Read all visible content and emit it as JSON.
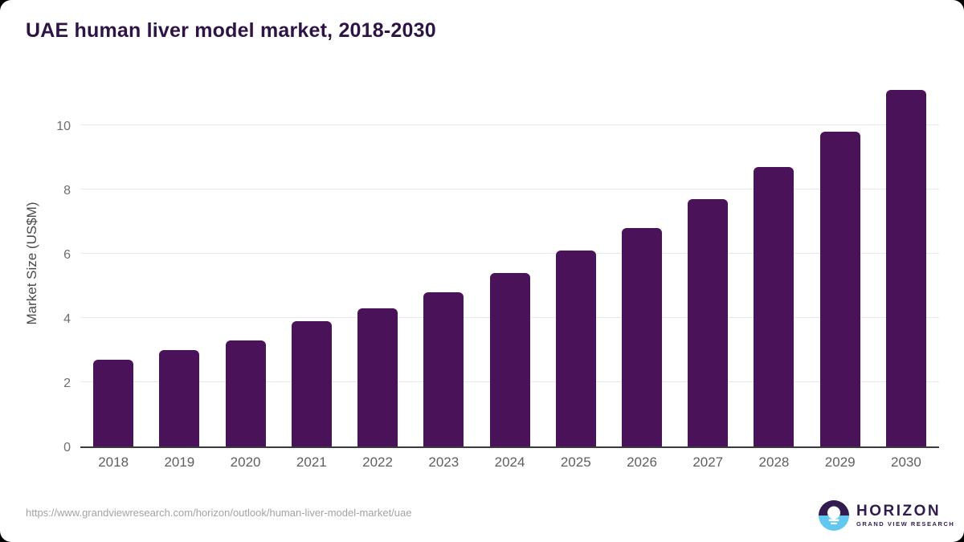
{
  "title": "UAE human liver model market, 2018-2030",
  "chart_data": {
    "type": "bar",
    "title": "UAE human liver model market, 2018-2030",
    "categories": [
      "2018",
      "2019",
      "2020",
      "2021",
      "2022",
      "2023",
      "2024",
      "2025",
      "2026",
      "2027",
      "2028",
      "2029",
      "2030"
    ],
    "values": [
      2.7,
      3.0,
      3.3,
      3.9,
      4.3,
      4.8,
      5.4,
      6.1,
      6.8,
      7.7,
      8.7,
      9.8,
      11.1
    ],
    "xlabel": "",
    "ylabel": "Market Size (US$M)",
    "ylim": [
      0,
      11.5
    ],
    "yticks": [
      0,
      2,
      4,
      6,
      8,
      10
    ],
    "grid": true,
    "legend": false,
    "bar_color": "#4a1258",
    "axis_color": "#3b3b3b",
    "gridline_color": "#e7e7e7"
  },
  "footer": {
    "source_url": "https://www.grandviewresearch.com/horizon/outlook/human-liver-model-market/uae",
    "logo": {
      "name": "HORIZON",
      "subtitle": "GRAND VIEW RESEARCH",
      "icon": "horizon-sun-icon",
      "purple": "#321b4f",
      "blue": "#62c8f0"
    }
  }
}
